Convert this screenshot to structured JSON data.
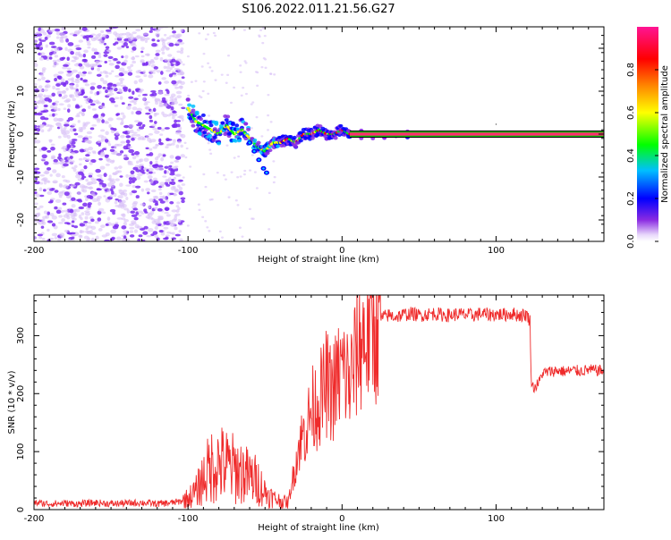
{
  "title": "S106.2022.011.21.56.G27",
  "colors": {
    "snr_line": "#ef2b2b",
    "axis": "#000000",
    "scatter_dot": "#7a2cf0",
    "scatter_light": "#d8c2f7"
  },
  "chart_data": [
    {
      "type": "heatmap",
      "name": "spectrogram",
      "xlabel": "Height of straight line (km)",
      "ylabel": "Frequency (Hz)",
      "xlim": [
        -200,
        170
      ],
      "ylim": [
        -25,
        25
      ],
      "xticks": [
        -200,
        -100,
        0,
        100
      ],
      "yticks": [
        -20,
        -10,
        0,
        10,
        20
      ],
      "colorbar": {
        "label": "Normalized spectral amplitude",
        "range": [
          0,
          1
        ],
        "ticks": [
          "0.0",
          "0.2",
          "0.4",
          "0.6",
          "0.8"
        ],
        "colormap": [
          "#ffffff",
          "#8a2be2",
          "#0000ff",
          "#00bfff",
          "#00ff00",
          "#ffff00",
          "#ff8c00",
          "#ff0000",
          "#ff1493"
        ]
      },
      "noise_region_x": [
        -200,
        -103
      ],
      "signal_track": {
        "x": [
          -100,
          -95,
          -90,
          -85,
          -80,
          -75,
          -70,
          -65,
          -60,
          -55,
          -50,
          -45,
          -40,
          -35,
          -30,
          -25,
          -20,
          -15,
          -10,
          -5,
          0,
          5,
          50,
          100,
          170
        ],
        "y": [
          6,
          3,
          2,
          1,
          0,
          2,
          0,
          1,
          -1,
          -3,
          -4,
          -2,
          -2,
          -1,
          -2,
          0,
          0,
          1,
          0,
          0,
          1,
          0,
          0,
          0,
          0
        ]
      },
      "branch_track": {
        "x": [
          -60,
          -57,
          -54,
          -51,
          -49
        ],
        "y": [
          -2,
          -4,
          -6,
          -8,
          -9
        ]
      },
      "carrier_line": {
        "x_start": 5,
        "x_end": 170,
        "freq": 0
      },
      "annotation_point": {
        "x": 100,
        "y": 2.5
      }
    },
    {
      "type": "line",
      "name": "snr",
      "xlabel": "Height of straight line (km)",
      "ylabel": "SNR (10 * v/v)",
      "xlim": [
        -200,
        170
      ],
      "ylim": [
        0,
        370
      ],
      "xticks": [
        -200,
        -100,
        0,
        100
      ],
      "yticks": [
        0,
        100,
        200,
        300
      ],
      "series": [
        {
          "x": [
            -200,
            -190,
            -180,
            -170,
            -160,
            -150,
            -140,
            -130,
            -120,
            -110,
            -105,
            -100,
            -95,
            -90,
            -85,
            -80,
            -75,
            -70,
            -65,
            -60,
            -55,
            -50,
            -45,
            -40,
            -35,
            -33,
            -30,
            -28,
            -25,
            -22,
            -20,
            -17,
            -15,
            -12,
            -10,
            -8,
            -5,
            -2,
            0,
            3,
            5,
            8,
            10,
            12,
            15,
            18,
            20,
            22,
            25,
            30,
            35,
            40,
            45,
            50,
            55,
            60,
            65,
            70,
            75,
            80,
            85,
            90,
            95,
            100,
            105,
            110,
            115,
            120,
            122,
            123,
            125,
            128,
            130,
            135,
            140,
            145,
            150,
            155,
            160,
            165,
            170
          ],
          "y": [
            12,
            10,
            11,
            10,
            12,
            10,
            11,
            12,
            10,
            12,
            14,
            20,
            30,
            55,
            75,
            80,
            75,
            70,
            65,
            55,
            50,
            30,
            20,
            15,
            12,
            40,
            80,
            110,
            130,
            150,
            170,
            180,
            190,
            200,
            220,
            200,
            210,
            230,
            240,
            230,
            220,
            250,
            280,
            290,
            300,
            310,
            315,
            322,
            330,
            335,
            333,
            336,
            338,
            335,
            337,
            338,
            336,
            335,
            337,
            336,
            335,
            338,
            336,
            337,
            336,
            338,
            335,
            336,
            325,
            215,
            210,
            220,
            235,
            238,
            240,
            238,
            240,
            239,
            241,
            240,
            240
          ]
        }
      ]
    }
  ]
}
